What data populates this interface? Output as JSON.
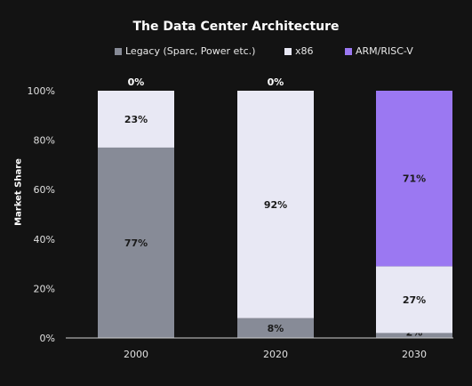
{
  "chart_data": {
    "type": "bar",
    "stacked": true,
    "title": "The Data Center Architecture",
    "ylabel": "Market Share",
    "xlabel": "",
    "ylim": [
      0,
      100
    ],
    "yticks": [
      "0%",
      "20%",
      "40%",
      "60%",
      "80%",
      "100%"
    ],
    "categories": [
      "2000",
      "2020",
      "2030"
    ],
    "series": [
      {
        "name": "Legacy (Sparc, Power etc.)",
        "color": "#878b97",
        "values": [
          77,
          8,
          2
        ],
        "labels": [
          "77%",
          "8%",
          "2%"
        ]
      },
      {
        "name": "x86",
        "color": "#e8e8f4",
        "values": [
          23,
          92,
          27
        ],
        "labels": [
          "23%",
          "92%",
          "27%"
        ]
      },
      {
        "name": "ARM/RISC-V",
        "color": "#9b78f2",
        "values": [
          0,
          0,
          71
        ],
        "labels": [
          "0%",
          "0%",
          "71%"
        ]
      }
    ],
    "legend_position": "top",
    "grid": false
  }
}
